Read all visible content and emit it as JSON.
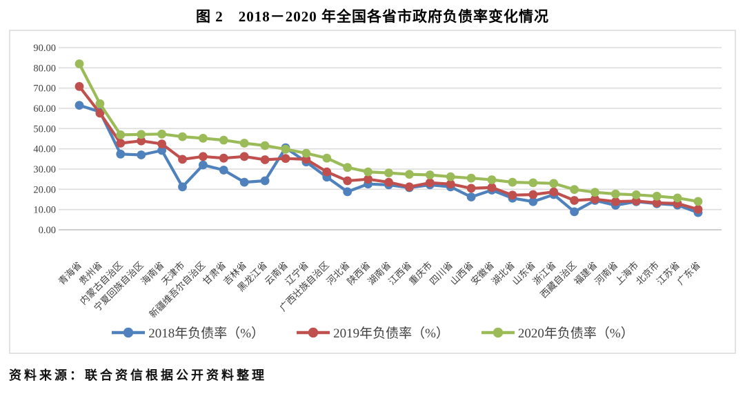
{
  "title": "图 2　2018－2020 年全国各省市政府负债率变化情况",
  "source_note": "资料来源：联合资信根据公开资料整理",
  "chart_data": {
    "type": "line",
    "title": "图 2　2018－2020 年全国各省市政府负债率变化情况",
    "xlabel": "",
    "ylabel": "",
    "ylim": [
      0,
      90
    ],
    "ytick_step": 10,
    "ytick_decimals": 2,
    "grid": true,
    "legend_position": "bottom",
    "grid_color": "#DCDCDC",
    "axis_line_color": "#BFBFBF",
    "categories": [
      "青海省",
      "贵州省",
      "内蒙古自治区",
      "宁夏回族自治区",
      "海南省",
      "天津市",
      "新疆维吾尔自治区",
      "甘肃省",
      "吉林省",
      "黑龙江省",
      "云南省",
      "辽宁省",
      "广西壮族自治区",
      "河北省",
      "陕西省",
      "湖南省",
      "江西省",
      "重庆市",
      "四川省",
      "山西省",
      "安徽省",
      "湖北省",
      "山东省",
      "浙江省",
      "西藏自治区",
      "福建省",
      "河南省",
      "上海市",
      "北京市",
      "江苏省",
      "广东省"
    ],
    "series": [
      {
        "name": "2018年负债率（%）",
        "color": "#4F81BD",
        "values": [
          61.5,
          58.3,
          37.4,
          37.0,
          39.2,
          21.2,
          32.0,
          29.5,
          23.5,
          24.2,
          40.5,
          33.5,
          26.0,
          18.8,
          22.6,
          22.2,
          20.8,
          22.2,
          21.2,
          16.2,
          19.6,
          15.6,
          13.9,
          17.4,
          8.9,
          14.5,
          12.1,
          13.9,
          12.9,
          12.2,
          8.5
        ]
      },
      {
        "name": "2019年负债率（%）",
        "color": "#C0504D",
        "values": [
          70.8,
          57.6,
          42.8,
          43.9,
          42.4,
          34.8,
          36.2,
          35.4,
          36.2,
          34.6,
          35.2,
          34.8,
          28.6,
          24.2,
          25.0,
          23.5,
          21.2,
          23.2,
          22.6,
          20.5,
          20.9,
          17.1,
          17.4,
          18.7,
          14.5,
          15.1,
          13.9,
          14.2,
          13.3,
          13.0,
          10.1
        ]
      },
      {
        "name": "2020年负债率（%）",
        "color": "#9BBB59",
        "values": [
          82.0,
          62.3,
          46.9,
          47.1,
          47.3,
          46.0,
          45.2,
          44.3,
          42.8,
          41.6,
          39.8,
          37.8,
          35.4,
          30.8,
          28.6,
          28.1,
          27.4,
          27.1,
          26.2,
          25.5,
          24.7,
          23.5,
          23.2,
          22.9,
          19.9,
          18.5,
          17.7,
          17.3,
          16.6,
          15.7,
          14.0
        ]
      }
    ]
  }
}
